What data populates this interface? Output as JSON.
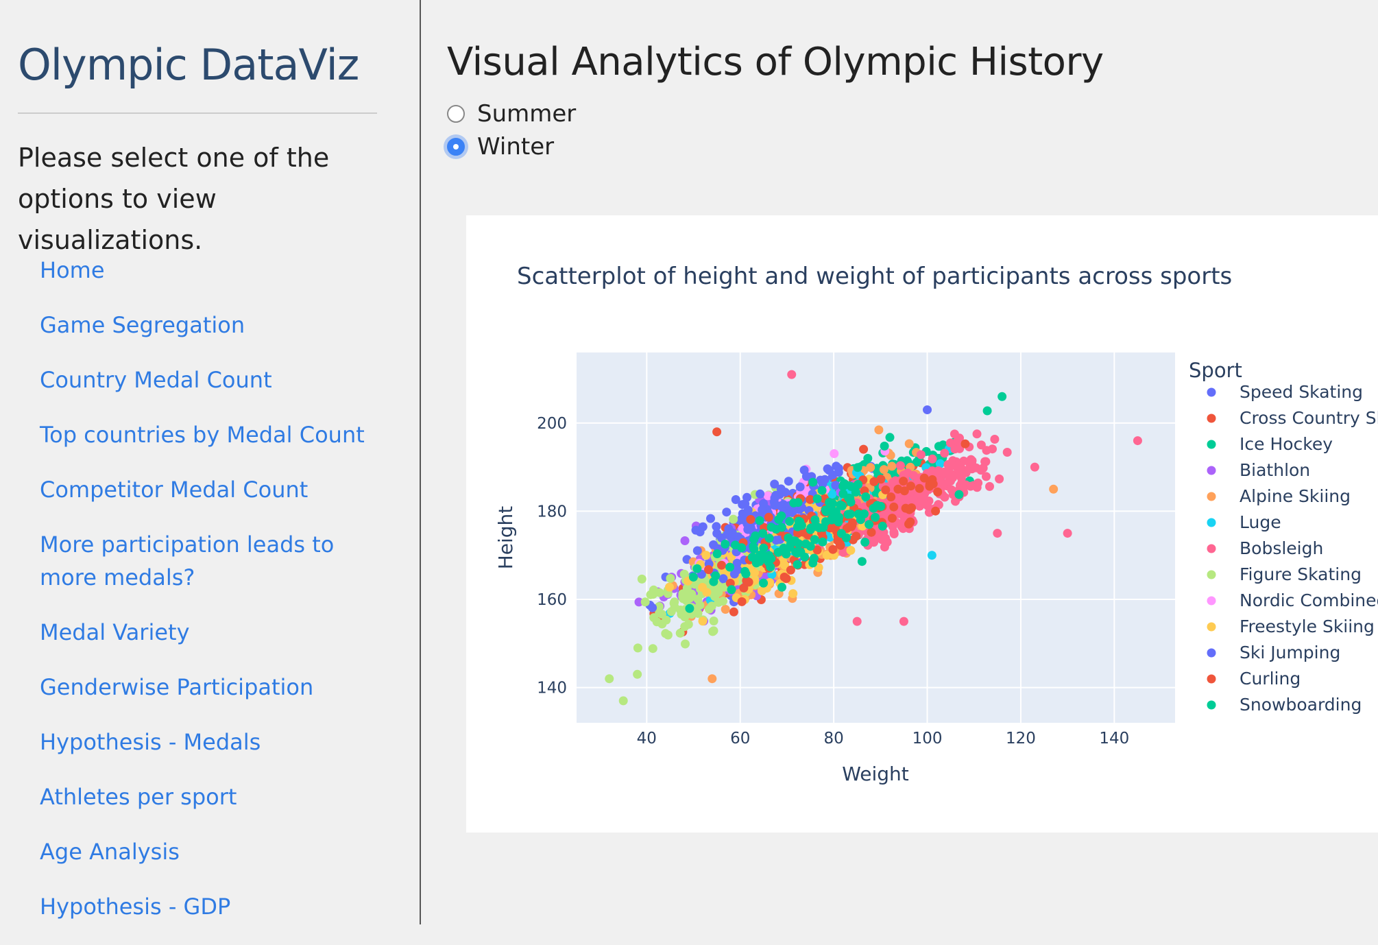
{
  "sidebar": {
    "title": "Olympic DataViz",
    "intro": "Please select one of the options to view visualizations.",
    "nav": [
      "Home",
      "Game Segregation",
      "Country Medal Count",
      "Top countries by Medal Count",
      "Competitor Medal Count",
      "More participation leads to more medals?",
      "Medal Variety",
      "Genderwise Participation",
      "Hypothesis - Medals",
      "Athletes per sport",
      "Age Analysis",
      "Hypothesis - GDP"
    ]
  },
  "main": {
    "title": "Visual Analytics of Olympic History",
    "season_options": [
      {
        "label": "Summer",
        "selected": false
      },
      {
        "label": "Winter",
        "selected": true
      }
    ]
  },
  "chart_data": {
    "type": "scatter",
    "title": "Scatterplot of height and weight of participants across sports",
    "xlabel": "Weight",
    "ylabel": "Height",
    "xlim": [
      25,
      153
    ],
    "ylim": [
      132,
      216
    ],
    "x_ticks": [
      40,
      60,
      80,
      100,
      120,
      140
    ],
    "y_ticks": [
      140,
      160,
      180,
      200
    ],
    "grid": true,
    "legend_title": "Sport",
    "legend_position": "right",
    "series": [
      {
        "name": "Speed Skating",
        "color": "#636efa",
        "center": [
          68,
          176
        ],
        "spread": [
          9,
          7
        ],
        "count": 260
      },
      {
        "name": "Cross Country Ski",
        "color": "#ef553b",
        "center": [
          72,
          176
        ],
        "spread": [
          10,
          8
        ],
        "count": 200
      },
      {
        "name": "Ice Hockey",
        "color": "#00cc96",
        "center": [
          86,
          183
        ],
        "spread": [
          9,
          6
        ],
        "count": 300
      },
      {
        "name": "Biathlon",
        "color": "#ab63fa",
        "center": [
          62,
          170
        ],
        "spread": [
          9,
          7
        ],
        "count": 320
      },
      {
        "name": "Alpine Skiing",
        "color": "#ffa15a",
        "center": [
          75,
          176
        ],
        "spread": [
          11,
          8
        ],
        "count": 240
      },
      {
        "name": "Luge",
        "color": "#19d3f3",
        "center": [
          78,
          176
        ],
        "spread": [
          11,
          7
        ],
        "count": 90
      },
      {
        "name": "Bobsleigh",
        "color": "#ff6692",
        "center": [
          98,
          184
        ],
        "spread": [
          8,
          6
        ],
        "count": 320
      },
      {
        "name": "Figure Skating",
        "color": "#b6e880",
        "center": [
          55,
          165
        ],
        "spread": [
          8,
          8
        ],
        "count": 180
      },
      {
        "name": "Nordic Combined",
        "color": "#ff97ff",
        "center": [
          68,
          178
        ],
        "spread": [
          6,
          5
        ],
        "count": 70
      },
      {
        "name": "Freestyle Skiing",
        "color": "#fecb52",
        "center": [
          70,
          173
        ],
        "spread": [
          10,
          8
        ],
        "count": 120
      },
      {
        "name": "Ski Jumping",
        "color": "#636efa",
        "center": [
          65,
          178
        ],
        "spread": [
          7,
          6
        ],
        "count": 120
      },
      {
        "name": "Curling",
        "color": "#ef553b",
        "center": [
          80,
          176
        ],
        "spread": [
          12,
          8
        ],
        "count": 110
      },
      {
        "name": "Snowboarding",
        "color": "#00cc96",
        "center": [
          75,
          176
        ],
        "spread": [
          10,
          8
        ],
        "count": 120
      }
    ],
    "outliers": [
      {
        "series": 6,
        "x": 145,
        "y": 196
      },
      {
        "series": 6,
        "x": 130,
        "y": 175
      },
      {
        "series": 6,
        "x": 123,
        "y": 190
      },
      {
        "series": 4,
        "x": 127,
        "y": 185
      },
      {
        "series": 6,
        "x": 71,
        "y": 211
      },
      {
        "series": 2,
        "x": 116,
        "y": 206
      },
      {
        "series": 1,
        "x": 55,
        "y": 198
      },
      {
        "series": 0,
        "x": 100,
        "y": 203
      },
      {
        "series": 7,
        "x": 35,
        "y": 137
      },
      {
        "series": 7,
        "x": 32,
        "y": 142
      },
      {
        "series": 7,
        "x": 38,
        "y": 143
      },
      {
        "series": 4,
        "x": 54,
        "y": 142
      },
      {
        "series": 6,
        "x": 95,
        "y": 155
      },
      {
        "series": 6,
        "x": 85,
        "y": 155
      },
      {
        "series": 5,
        "x": 101,
        "y": 170
      },
      {
        "series": 6,
        "x": 115,
        "y": 175
      }
    ]
  }
}
